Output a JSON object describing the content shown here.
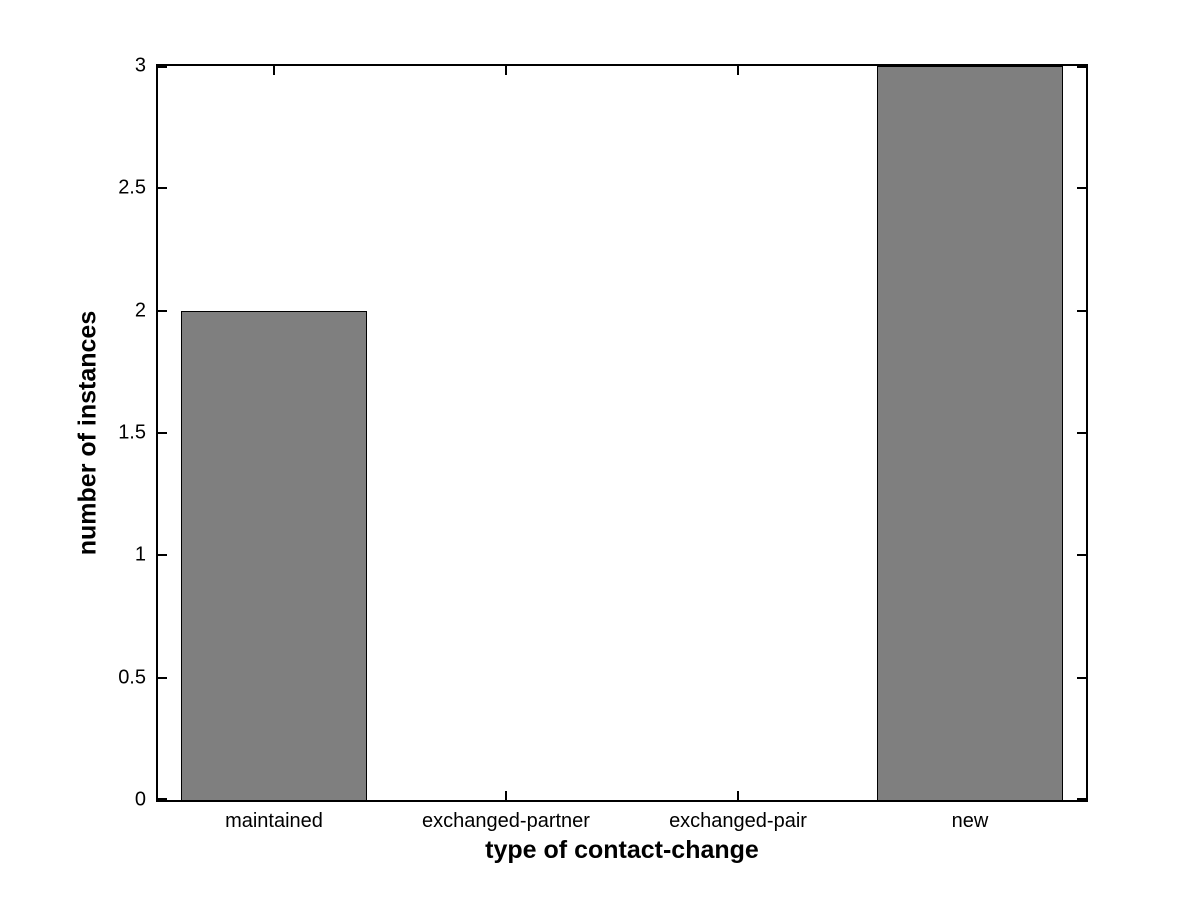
{
  "figure": {
    "background": "#ffffff",
    "axis_color": "#000000",
    "text_color": "#000000"
  },
  "chart_data": {
    "type": "bar",
    "title": "",
    "xlabel": "type of contact-change",
    "ylabel": "number of instances",
    "categories": [
      "maintained",
      "exchanged-partner",
      "exchanged-pair",
      "new"
    ],
    "values": [
      2,
      0,
      0,
      3
    ],
    "ylim": [
      0,
      3
    ],
    "yticks": [
      0,
      0.5,
      1,
      1.5,
      2,
      2.5,
      3
    ],
    "ytick_labels": [
      "0",
      "0.5",
      "1",
      "1.5",
      "2",
      "2.5",
      "3"
    ],
    "bar_color": "#7f7f7f",
    "bar_edge_color": "#000000",
    "bar_width_fraction": 0.8,
    "grid": false,
    "legend_position": "none",
    "tick_style": "inward-all-sides"
  }
}
